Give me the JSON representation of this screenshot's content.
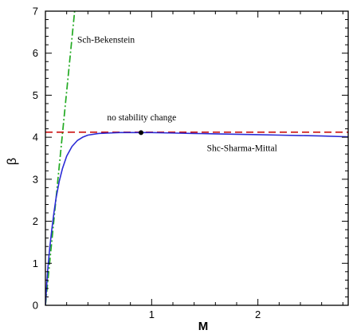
{
  "chart_data": {
    "type": "line",
    "xlabel": "M",
    "ylabel": "β",
    "xlim": [
      0,
      2.85
    ],
    "ylim": [
      0,
      7
    ],
    "x_ticks": [
      1,
      2
    ],
    "y_ticks": [
      0,
      1,
      2,
      3,
      4,
      5,
      6,
      7
    ],
    "grid": false,
    "series": [
      {
        "name": "Shc-Sharma-Mittal",
        "style": "solid",
        "color": "#2b2bd6",
        "x": [
          0.0,
          0.02,
          0.04,
          0.06,
          0.08,
          0.1,
          0.13,
          0.16,
          0.2,
          0.25,
          0.3,
          0.35,
          0.4,
          0.5,
          0.6,
          0.7,
          0.8,
          0.9,
          1.0,
          1.2,
          1.4,
          1.6,
          1.8,
          2.0,
          2.2,
          2.4,
          2.6,
          2.85
        ],
        "values": [
          0.0,
          0.8,
          1.35,
          1.8,
          2.2,
          2.55,
          2.95,
          3.25,
          3.55,
          3.78,
          3.92,
          4.0,
          4.05,
          4.09,
          4.1,
          4.11,
          4.11,
          4.11,
          4.11,
          4.1,
          4.09,
          4.08,
          4.07,
          4.06,
          4.05,
          4.04,
          4.03,
          4.01
        ]
      },
      {
        "name": "Sch-Bekenstein",
        "style": "dash-dot",
        "color": "#22aa22",
        "x": [
          0.0,
          0.275
        ],
        "values": [
          0.0,
          7.0
        ]
      },
      {
        "name": "",
        "style": "dashed",
        "color": "#cc1111",
        "x": [
          0.0,
          2.85
        ],
        "values": [
          4.12,
          4.12
        ]
      }
    ],
    "points": [
      {
        "x": 0.9,
        "y": 4.11
      }
    ],
    "annotations": [
      {
        "text": "Sch-Bekenstein",
        "x": 0.3,
        "y": 6.25
      },
      {
        "text": "no stability change",
        "x": 0.58,
        "y": 4.4
      },
      {
        "text": "Shc-Sharma-Mittal",
        "x": 1.52,
        "y": 3.67
      }
    ]
  }
}
